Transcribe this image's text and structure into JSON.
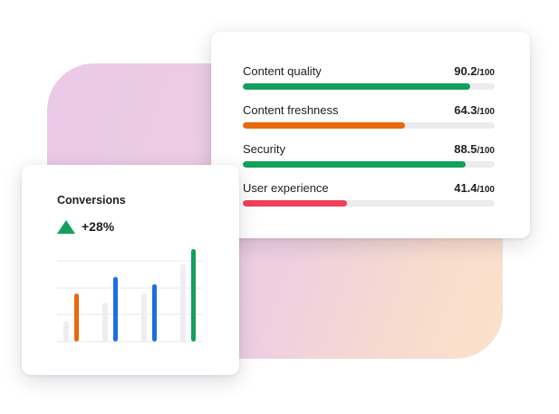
{
  "colors": {
    "green": "#13a05c",
    "orange": "#e8690e",
    "blue": "#1b6fe4",
    "red": "#f0405a",
    "track": "#ececef",
    "ghost_bar": "#eeeef2",
    "gridline": "#e6e6ea"
  },
  "scores": {
    "max_label": "/100",
    "metrics": [
      {
        "label": "Content quality",
        "value": "90.2",
        "fraction": 0.902,
        "color": "#13a05c",
        "icon": "none"
      },
      {
        "label": "Content freshness",
        "value": "64.3",
        "fraction": 0.643,
        "color": "#e8690e",
        "icon": "none"
      },
      {
        "label": "Security",
        "value": "88.5",
        "fraction": 0.885,
        "color": "#13a05c",
        "icon": "none"
      },
      {
        "label": "User experience",
        "value": "41.4",
        "fraction": 0.414,
        "color": "#f0405a",
        "icon": "none"
      }
    ]
  },
  "conversions": {
    "title": "Conversions",
    "change": "+28%",
    "change_icon": "triangle-up-icon",
    "chart_data": {
      "type": "bar",
      "title": "",
      "xlabel": "",
      "ylabel": "",
      "ylim": [
        0,
        100
      ],
      "grid": true,
      "groups": [
        {
          "ghost": 22,
          "value": 52,
          "color": "#e8690e"
        },
        {
          "ghost": 42,
          "value": 70,
          "color": "#1b6fe4"
        },
        {
          "ghost": 52,
          "value": 62,
          "color": "#1b6fe4"
        },
        {
          "ghost": 84,
          "value": 100,
          "color": "#13a05c"
        }
      ]
    }
  }
}
